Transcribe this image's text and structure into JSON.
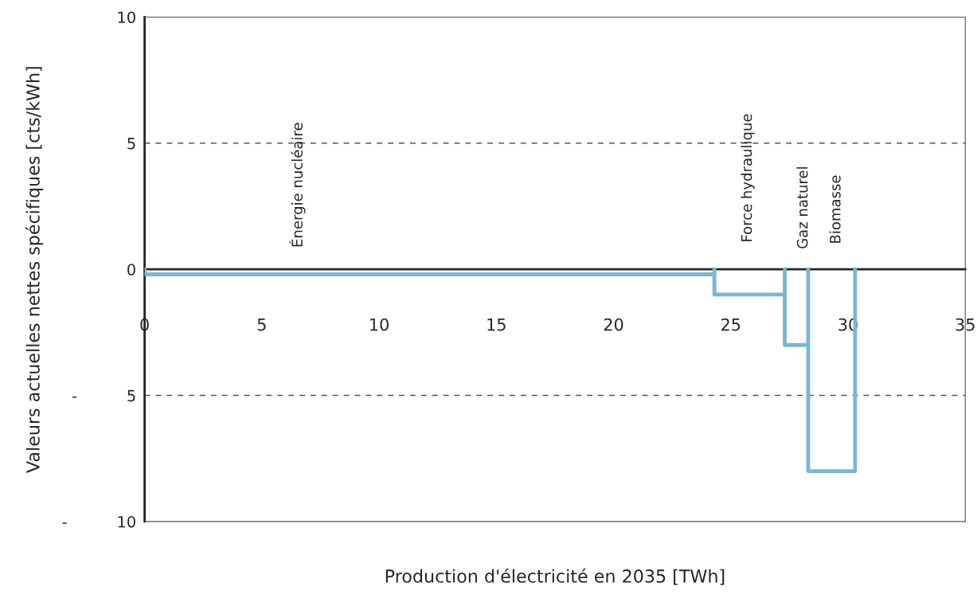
{
  "chart_data": {
    "type": "line",
    "xlabel": "Production d'électricité en 2035 [TWh]",
    "ylabel": "Valeurs actuelles nettes spécifiques [cts/kWh]",
    "x": [
      0,
      0,
      24.3,
      24.3,
      24.3,
      27.3,
      27.3,
      27.3,
      28.3,
      28.3,
      28.3,
      30.3,
      30.3
    ],
    "series": [
      {
        "color": "#77b8d3",
        "values": [
          0,
          -0.2,
          -0.2,
          0,
          -1,
          -1,
          0,
          -3,
          -3,
          0,
          -8,
          -8,
          0
        ]
      }
    ],
    "xlim": [
      0,
      35
    ],
    "xticks": [
      0,
      5,
      10,
      15,
      20,
      25,
      30,
      35
    ],
    "ylim": [
      -10,
      10
    ],
    "yticks": [
      10,
      5,
      0,
      {
        "value": -5,
        "label": "-          5"
      },
      {
        "value": -10,
        "label": "-          10"
      }
    ],
    "grid": "y",
    "annotations": [
      "Énergie nucléaire",
      "Force hydraulique",
      "Gaz naturel",
      "Biomasse"
    ]
  }
}
